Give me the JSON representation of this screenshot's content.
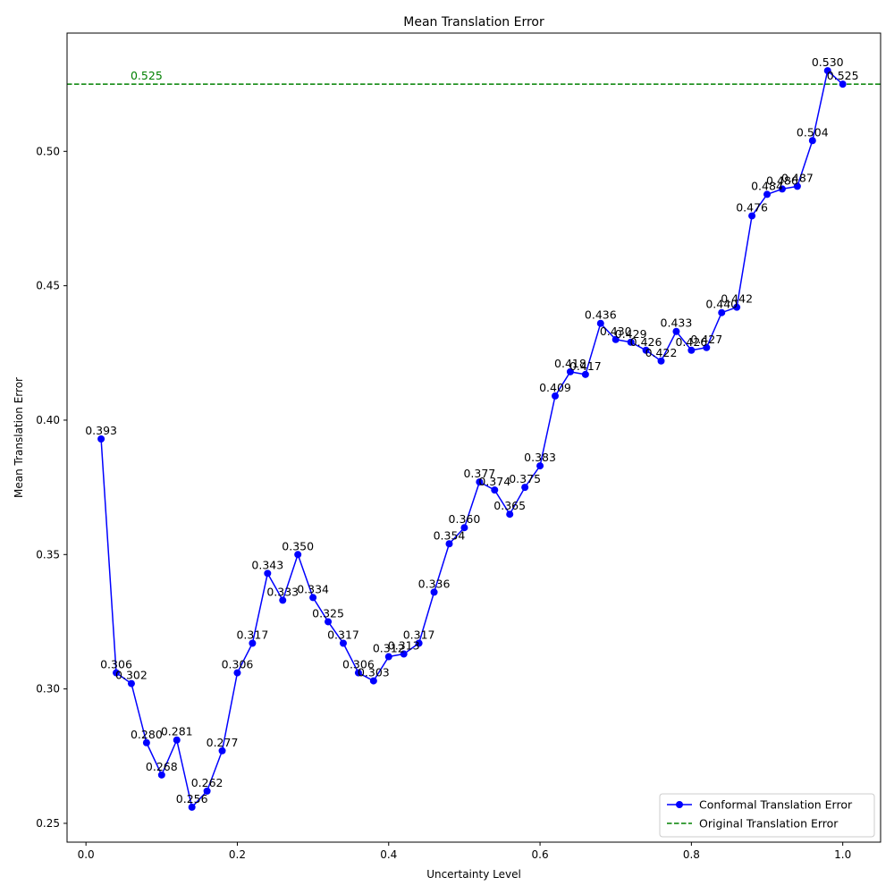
{
  "chart_data": {
    "type": "line",
    "title": "Mean Translation Error",
    "xlabel": "Uncertainty Level",
    "ylabel": "Mean Translation Error",
    "xlim": [
      -0.025,
      1.05
    ],
    "ylim": [
      0.243,
      0.544
    ],
    "x_ticks": [
      0.0,
      0.2,
      0.4,
      0.6,
      0.8,
      1.0
    ],
    "x_tick_labels": [
      "0.0",
      "0.2",
      "0.4",
      "0.6",
      "0.8",
      "1.0"
    ],
    "y_ticks": [
      0.25,
      0.3,
      0.35,
      0.4,
      0.45,
      0.5
    ],
    "y_tick_labels": [
      "0.25",
      "0.30",
      "0.35",
      "0.40",
      "0.45",
      "0.50"
    ],
    "grid": false,
    "legend_position": "bottom-right",
    "series": [
      {
        "name": "Conformal Translation Error",
        "color": "#0000ff",
        "marker": "circle",
        "x": [
          0.02,
          0.04,
          0.06,
          0.08,
          0.1,
          0.12,
          0.14,
          0.16,
          0.18,
          0.2,
          0.22,
          0.24,
          0.26,
          0.28,
          0.3,
          0.32,
          0.34,
          0.36,
          0.38,
          0.4,
          0.42,
          0.44,
          0.46,
          0.48,
          0.5,
          0.52,
          0.54,
          0.56,
          0.58,
          0.6,
          0.62,
          0.64,
          0.66,
          0.68,
          0.7,
          0.72,
          0.74,
          0.76,
          0.78,
          0.8,
          0.82,
          0.84,
          0.86,
          0.88,
          0.9,
          0.92,
          0.94,
          0.96,
          0.98,
          1.0
        ],
        "y": [
          0.393,
          0.306,
          0.302,
          0.28,
          0.268,
          0.281,
          0.256,
          0.262,
          0.277,
          0.306,
          0.317,
          0.343,
          0.333,
          0.35,
          0.334,
          0.325,
          0.317,
          0.306,
          0.303,
          0.312,
          0.313,
          0.317,
          0.336,
          0.354,
          0.36,
          0.377,
          0.374,
          0.365,
          0.375,
          0.383,
          0.409,
          0.418,
          0.417,
          0.436,
          0.43,
          0.429,
          0.426,
          0.422,
          0.433,
          0.426,
          0.427,
          0.44,
          0.442,
          0.476,
          0.484,
          0.486,
          0.487,
          0.504,
          0.53,
          0.525
        ],
        "labels": [
          "0.393",
          "0.306",
          "0.302",
          "0.280",
          "0.268",
          "0.281",
          "0.256",
          "0.262",
          "0.277",
          "0.306",
          "0.317",
          "0.343",
          "0.333",
          "0.350",
          "0.334",
          "0.325",
          "0.317",
          "0.306",
          "0.303",
          "0.312",
          "0.313",
          "0.317",
          "0.336",
          "0.354",
          "0.360",
          "0.377",
          "0.374",
          "0.365",
          "0.375",
          "0.383",
          "0.409",
          "0.418",
          "0.417",
          "0.436",
          "0.430",
          "0.429",
          "0.426",
          "0.422",
          "0.433",
          "0.426",
          "0.427",
          "0.440",
          "0.442",
          "0.476",
          "0.484",
          "0.486",
          "0.487",
          "0.504",
          "0.530",
          "0.525"
        ]
      }
    ],
    "reference_line": {
      "name": "Original Translation Error",
      "value": 0.525,
      "label": "0.525",
      "color": "#008000",
      "style": "dashed"
    }
  }
}
